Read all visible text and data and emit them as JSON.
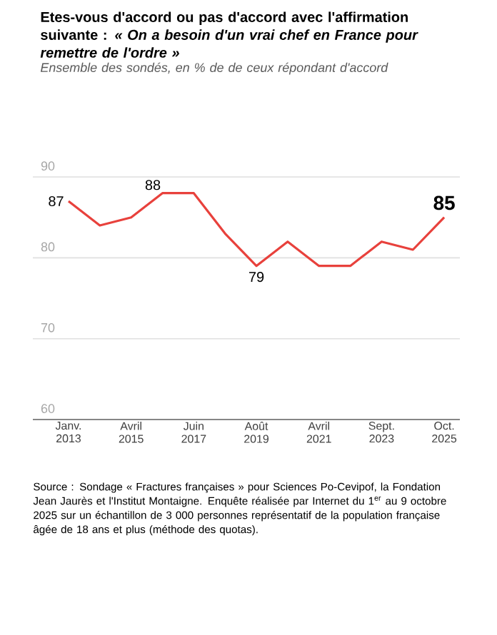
{
  "chart_data": {
    "type": "line",
    "title": "Etes-vous d'accord ou pas d'accord avec l'affirmation suivante : *« On a besoin d'un vrai chef en France pour remettre de l'ordre »*",
    "subtitle": "Ensemble des sondés, en % de de ceux répondant d'accord",
    "categories": [
      "Janv. 2013",
      null,
      "Avril 2015",
      null,
      "Juin 2017",
      null,
      "Août 2019",
      null,
      "Avril 2021",
      null,
      "Sept. 2023",
      null,
      "Oct. 2025"
    ],
    "series": [
      {
        "color": "#e8413c",
        "values": [
          87,
          84,
          85,
          88,
          88,
          83,
          79,
          82,
          79,
          79,
          82,
          81,
          85
        ],
        "value_labels": [
          "87",
          null,
          null,
          "88",
          null,
          null,
          "79",
          null,
          null,
          null,
          null,
          null,
          "85"
        ]
      }
    ],
    "ylim": [
      60,
      90
    ],
    "yticks": [
      60,
      70,
      80,
      90
    ],
    "grid": "y",
    "marker": "none",
    "line_style": "solid",
    "annotations": [
      "Source : Sondage « Fractures françaises » pour Sciences Po-Cevipof, la Fondation Jean Jaurès et l'Institut Montaigne. Enquête réalisée par Internet du 1$^{er}$ au 9 octobre 2025 sur un échantillon de 3 000 personnes représentatif de la population française âgée de 18 ans et plus (méthode des quotas)."
    ]
  }
}
